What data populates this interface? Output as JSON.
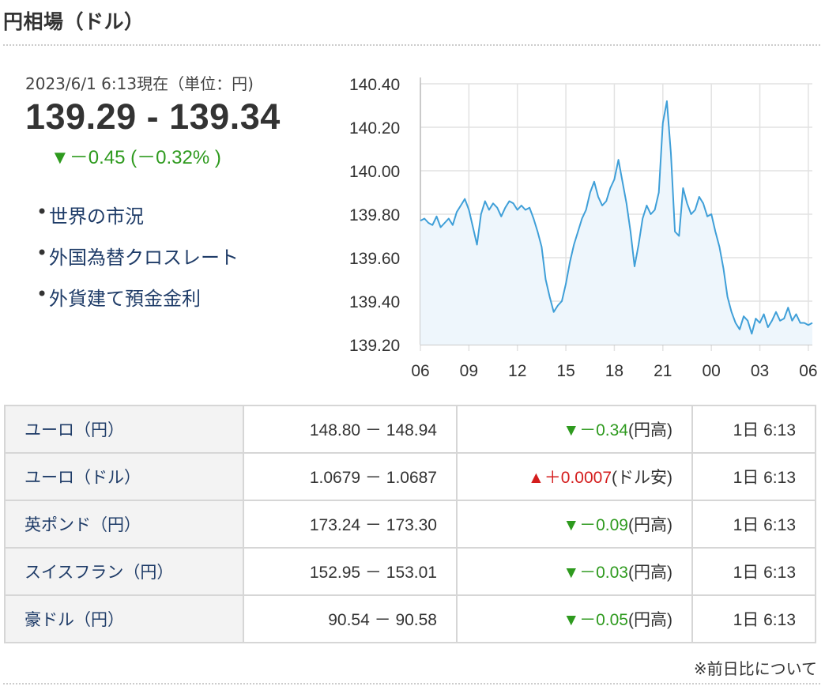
{
  "header": {
    "title": "円相場（ドル）"
  },
  "summary": {
    "as_of": "2023/6/1 6:13現在（単位：円)",
    "rate": "139.29 - 139.34",
    "change": "▼－0.45 (－0.32% )"
  },
  "links": [
    {
      "label": "世界の市況"
    },
    {
      "label": "外国為替クロスレート"
    },
    {
      "label": "外貨建て預金金利"
    }
  ],
  "chart_data": {
    "type": "line",
    "title": "",
    "xlabel": "",
    "ylabel": "",
    "ylim": [
      139.2,
      140.4
    ],
    "y_ticks": [
      "140.40",
      "140.20",
      "140.00",
      "139.80",
      "139.60",
      "139.40",
      "139.20"
    ],
    "x_ticks": [
      "06",
      "09",
      "12",
      "15",
      "18",
      "21",
      "00",
      "03",
      "06"
    ],
    "grid": true,
    "line_color": "#3f9fd8",
    "fill_color": "#eef6fc",
    "series": [
      {
        "x": [
          0,
          0.25,
          0.5,
          0.75,
          1,
          1.25,
          1.5,
          1.75,
          2,
          2.25,
          2.5,
          2.75,
          3,
          3.25,
          3.5,
          3.75,
          4,
          4.25,
          4.5,
          4.75,
          5,
          5.25,
          5.5,
          5.75,
          6,
          6.25,
          6.5,
          6.75,
          7,
          7.25,
          7.5,
          7.75,
          8,
          8.25,
          8.5,
          8.75,
          9,
          9.25,
          9.5,
          9.75,
          10,
          10.25,
          10.5,
          10.75,
          11,
          11.25,
          11.5,
          11.75,
          12,
          12.25,
          12.5,
          12.75,
          13,
          13.25,
          13.5,
          13.75,
          14,
          14.25,
          14.5,
          14.75,
          15,
          15.25,
          15.5,
          15.75,
          16,
          16.25,
          16.5,
          16.75,
          17,
          17.25,
          17.5,
          17.75,
          18,
          18.25,
          18.5,
          18.75,
          19,
          19.25,
          19.5,
          19.75,
          20,
          20.25,
          20.5,
          20.75,
          21,
          21.25,
          21.5,
          21.75,
          22,
          22.25,
          22.5,
          22.75,
          23,
          23.25,
          23.5,
          23.75,
          24,
          24.25
        ],
        "y": [
          139.77,
          139.78,
          139.76,
          139.75,
          139.79,
          139.74,
          139.76,
          139.78,
          139.75,
          139.81,
          139.84,
          139.87,
          139.82,
          139.74,
          139.66,
          139.8,
          139.86,
          139.82,
          139.85,
          139.83,
          139.79,
          139.83,
          139.86,
          139.85,
          139.82,
          139.84,
          139.82,
          139.83,
          139.78,
          139.72,
          139.65,
          139.5,
          139.42,
          139.35,
          139.38,
          139.4,
          139.48,
          139.58,
          139.66,
          139.72,
          139.78,
          139.82,
          139.9,
          139.95,
          139.88,
          139.84,
          139.86,
          139.92,
          139.96,
          140.05,
          139.95,
          139.85,
          139.72,
          139.56,
          139.66,
          139.78,
          139.84,
          139.8,
          139.82,
          139.9,
          140.22,
          140.32,
          140.08,
          139.72,
          139.7,
          139.92,
          139.85,
          139.8,
          139.82,
          139.88,
          139.85,
          139.79,
          139.8,
          139.72,
          139.65,
          139.55,
          139.42,
          139.35,
          139.3,
          139.27,
          139.33,
          139.31,
          139.25,
          139.32,
          139.3,
          139.34,
          139.28,
          139.31,
          139.35,
          139.31,
          139.32,
          139.37,
          139.31,
          139.34,
          139.3,
          139.3,
          139.29,
          139.3
        ]
      }
    ]
  },
  "table": {
    "rows": [
      {
        "name": "ユーロ（円）",
        "bidask": "148.80 － 148.94",
        "diff_dir": "down",
        "diff_value": "▼－0.34",
        "diff_unit": "(円高)",
        "time": "1日 6:13"
      },
      {
        "name": "ユーロ（ドル）",
        "bidask": "1.0679 － 1.0687",
        "diff_dir": "up",
        "diff_value": "▲＋0.0007",
        "diff_unit": "(ドル安)",
        "time": "1日 6:13"
      },
      {
        "name": "英ポンド（円）",
        "bidask": "173.24 － 173.30",
        "diff_dir": "down",
        "diff_value": "▼－0.09",
        "diff_unit": "(円高)",
        "time": "1日 6:13"
      },
      {
        "name": "スイスフラン（円）",
        "bidask": "152.95 － 153.01",
        "diff_dir": "down",
        "diff_value": "▼－0.03",
        "diff_unit": "(円高)",
        "time": "1日 6:13"
      },
      {
        "name": "豪ドル（円）",
        "bidask": "90.54 － 90.58",
        "diff_dir": "down",
        "diff_value": "▼－0.05",
        "diff_unit": "(円高)",
        "time": "1日 6:13"
      }
    ]
  },
  "footer": {
    "note": "※前日比について"
  },
  "colors": {
    "down": "#2e9a1e",
    "up": "#d41d1d",
    "link": "#1f3c68",
    "line": "#3f9fd8"
  }
}
